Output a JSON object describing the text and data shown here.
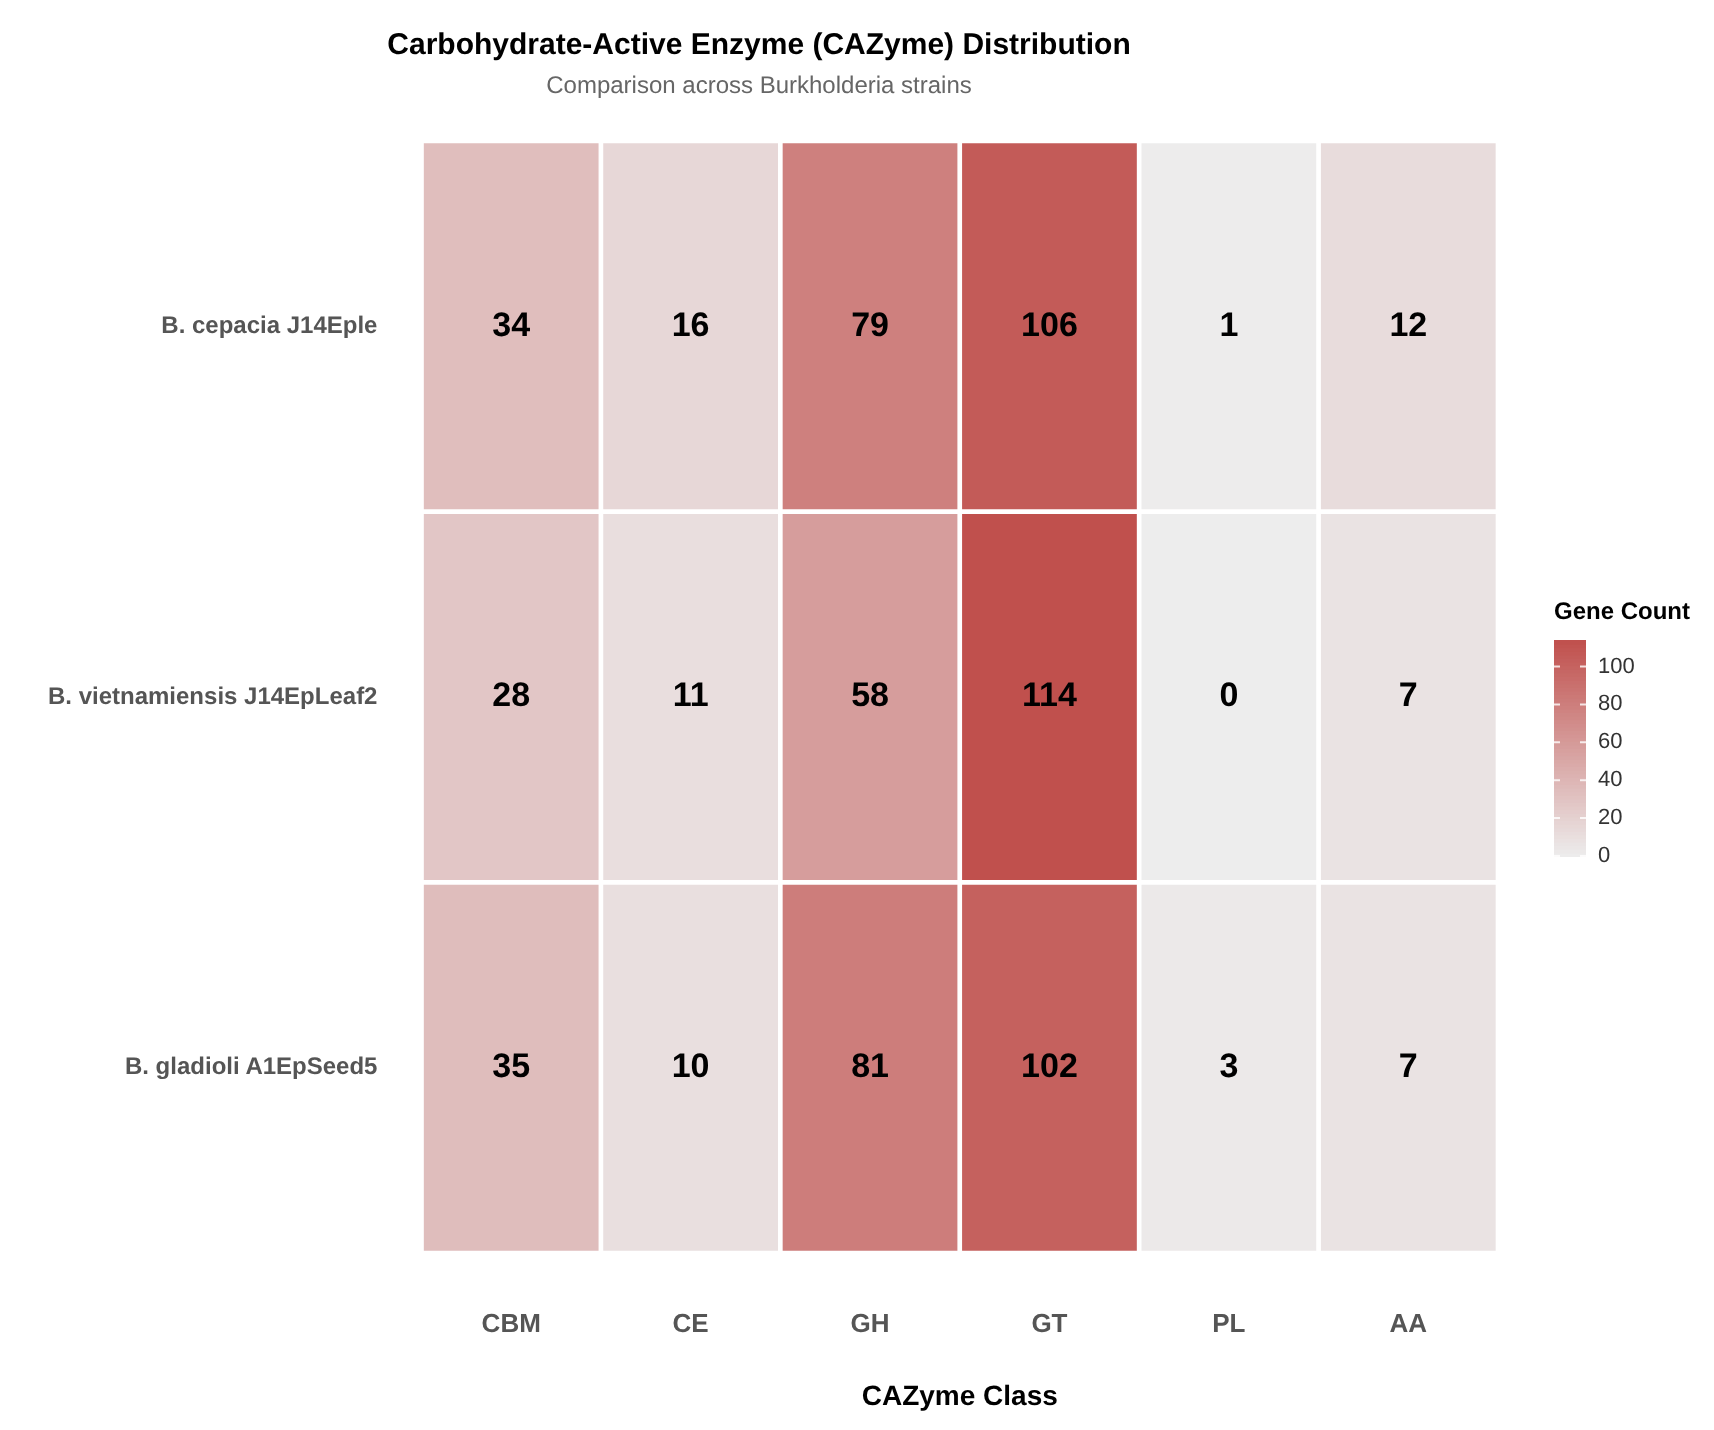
{
  "chart_data": {
    "type": "heatmap",
    "title": "Carbohydrate-Active Enzyme (CAZyme) Distribution",
    "subtitle": "Comparison across Burkholderia strains",
    "xlabel": "CAZyme Class",
    "clabel": "Gene Count",
    "categories": [
      "CBM",
      "CE",
      "GH",
      "GT",
      "PL",
      "AA"
    ],
    "y_categories": [
      "B. cepacia J14Eple",
      "B. vietnamiensis J14EpLeaf2",
      "B. gladioli A1EpSeed5"
    ],
    "cells": [
      [
        34,
        16,
        79,
        106,
        1,
        12
      ],
      [
        28,
        11,
        58,
        114,
        0,
        7
      ],
      [
        35,
        10,
        81,
        102,
        3,
        7
      ]
    ],
    "colors": [
      "#ededed",
      "#c0504d"
    ],
    "clim": [
      0,
      114
    ],
    "cticks": [
      0,
      20,
      40,
      60,
      80,
      100
    ],
    "data_labels": true
  }
}
